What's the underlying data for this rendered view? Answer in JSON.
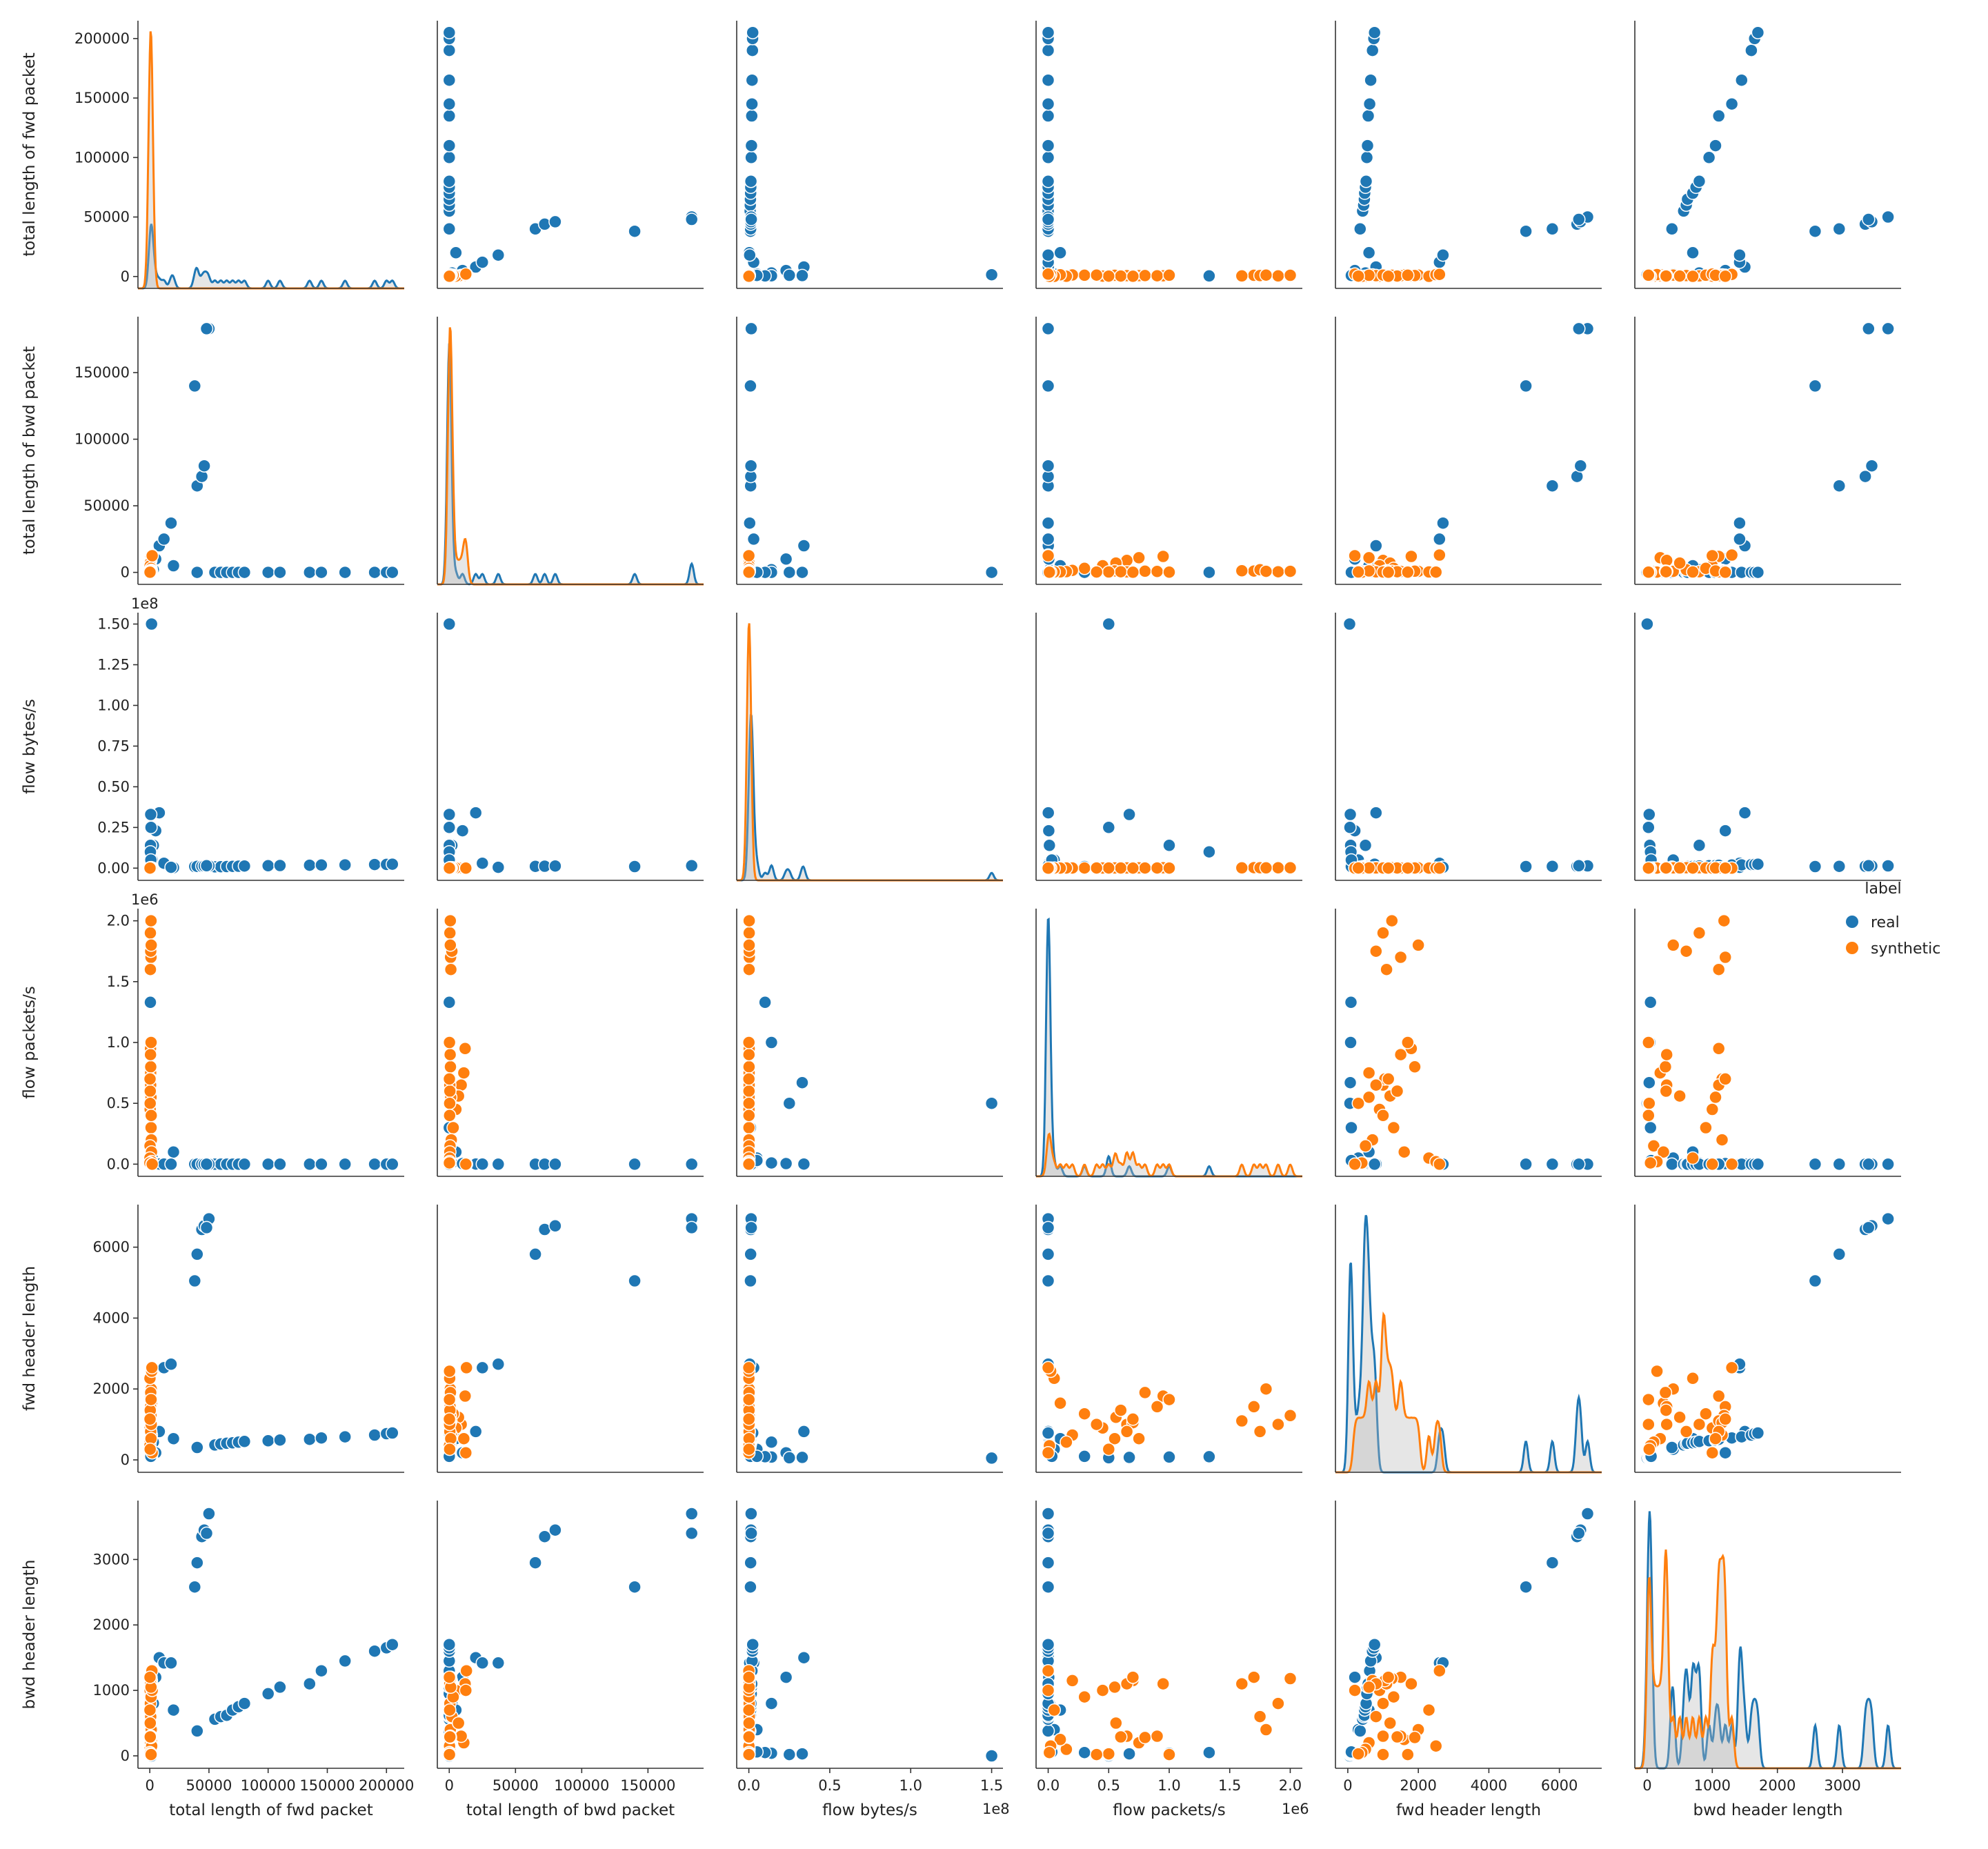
{
  "chart_data": {
    "type": "scatter",
    "variables": [
      "total length of fwd packet",
      "total length of bwd packet",
      "flow bytes/s",
      "flow packets/s",
      "fwd header length",
      "bwd header length"
    ],
    "axes": [
      {
        "name": "total length of fwd packet",
        "range": [
          -10000,
          215000
        ],
        "ticks": [
          0,
          50000,
          100000,
          150000,
          200000
        ],
        "tick_labels": [
          "0",
          "50000",
          "100000",
          "150000",
          "200000"
        ],
        "x_tick_labels": [
          "0",
          "50000",
          "100000",
          "150000",
          "200000"
        ],
        "offset": ""
      },
      {
        "name": "total length of bwd packet",
        "range": [
          -9000,
          192000
        ],
        "ticks": [
          0,
          50000,
          100000,
          150000
        ],
        "tick_labels": [
          "0",
          "50000",
          "100000",
          "150000"
        ],
        "x_tick_labels": [
          "0",
          "50000",
          "100000",
          "150000"
        ],
        "offset": ""
      },
      {
        "name": "flow bytes/s",
        "range": [
          -7500000,
          157000000
        ],
        "ticks": [
          0,
          25000000,
          50000000,
          75000000,
          100000000,
          125000000,
          150000000
        ],
        "tick_labels": [
          "0.00",
          "0.25",
          "0.50",
          "0.75",
          "1.00",
          "1.25",
          "1.50"
        ],
        "x_ticks": [
          0,
          50000000,
          100000000,
          150000000
        ],
        "x_tick_labels": [
          "0.0",
          "0.5",
          "1.0",
          "1.5"
        ],
        "offset": "1e8"
      },
      {
        "name": "flow packets/s",
        "range": [
          -100000,
          2100000
        ],
        "ticks": [
          0,
          500000,
          1000000,
          1500000,
          2000000
        ],
        "tick_labels": [
          "0.0",
          "0.5",
          "1.0",
          "1.5",
          "2.0"
        ],
        "x_tick_labels": [
          "0.0",
          "0.5",
          "1.0",
          "1.5",
          "2.0"
        ],
        "offset": "1e6"
      },
      {
        "name": "fwd header length",
        "range": [
          -350,
          7200
        ],
        "ticks": [
          0,
          2000,
          4000,
          6000
        ],
        "tick_labels": [
          "0",
          "2000",
          "4000",
          "6000"
        ],
        "x_tick_labels": [
          "0",
          "2000",
          "4000",
          "6000"
        ],
        "offset": ""
      },
      {
        "name": "bwd header length",
        "range": [
          -190,
          3900
        ],
        "ticks": [
          0,
          1000,
          2000,
          3000
        ],
        "tick_labels": [
          "0",
          "1000",
          "2000",
          "3000"
        ],
        "x_tick_labels": [
          "0",
          "1000",
          "2000",
          "3000"
        ],
        "offset": ""
      }
    ],
    "legend": {
      "title": "label",
      "position": "right",
      "entries": [
        {
          "name": "real",
          "color": "#1f77b4"
        },
        {
          "name": "synthetic",
          "color": "#ff7f0e"
        }
      ]
    },
    "grid": false,
    "series": [
      {
        "name": "real",
        "color": "#1f77b4",
        "points": [
          [
            1000,
            0,
            1000000,
            300000,
            100,
            50
          ],
          [
            2000,
            500,
            5000000,
            50000,
            300,
            400
          ],
          [
            3000,
            2000,
            14000000,
            10000,
            500,
            800
          ],
          [
            5000,
            10000,
            23000000,
            5000,
            200,
            1200
          ],
          [
            8000,
            20000,
            34000000,
            1000,
            800,
            1500
          ],
          [
            12000,
            25000,
            3000000,
            500,
            2600,
            1420
          ],
          [
            20000,
            5000,
            300000,
            100000,
            600,
            700
          ],
          [
            18000,
            37000,
            500000,
            0,
            2700,
            1420
          ],
          [
            40000,
            0,
            600000,
            0,
            350,
            380
          ],
          [
            55000,
            0,
            800000,
            0,
            420,
            560
          ],
          [
            60000,
            0,
            900000,
            0,
            450,
            600
          ],
          [
            65000,
            0,
            1000000,
            0,
            470,
            620
          ],
          [
            70000,
            0,
            1100000,
            0,
            480,
            700
          ],
          [
            75000,
            0,
            1200000,
            0,
            500,
            750
          ],
          [
            80000,
            0,
            1300000,
            0,
            520,
            800
          ],
          [
            100000,
            0,
            1500000,
            0,
            540,
            950
          ],
          [
            110000,
            0,
            1600000,
            0,
            560,
            1050
          ],
          [
            135000,
            0,
            1800000,
            0,
            580,
            1100
          ],
          [
            145000,
            0,
            1900000,
            0,
            620,
            1300
          ],
          [
            165000,
            0,
            2000000,
            0,
            650,
            1450
          ],
          [
            190000,
            0,
            2200000,
            0,
            700,
            1600
          ],
          [
            200000,
            0,
            2300000,
            0,
            740,
            1650
          ],
          [
            205000,
            0,
            2400000,
            0,
            760,
            1700
          ],
          [
            38000,
            140000,
            1000000,
            0,
            5050,
            2580
          ],
          [
            40000,
            65000,
            1100000,
            0,
            5800,
            2950
          ],
          [
            44000,
            72000,
            1200000,
            0,
            6500,
            3350
          ],
          [
            46000,
            80000,
            1300000,
            0,
            6600,
            3450
          ],
          [
            50000,
            183000,
            1400000,
            0,
            6800,
            3700
          ],
          [
            48000,
            183000,
            1500000,
            0,
            6550,
            3400
          ],
          [
            1500,
            0,
            150000000,
            500000,
            50,
            0
          ],
          [
            1000,
            0,
            25000000,
            500000,
            60,
            20
          ],
          [
            800,
            0,
            33000000,
            670000,
            70,
            30
          ],
          [
            600,
            0,
            14000000,
            1000000,
            80,
            40
          ],
          [
            500,
            0,
            10000000,
            1330000,
            90,
            50
          ],
          [
            900,
            0,
            5000000,
            30000,
            100,
            60
          ]
        ]
      },
      {
        "name": "synthetic",
        "color": "#ff7f0e",
        "points": [
          [
            500,
            500,
            200000,
            1900000,
            1000,
            800
          ],
          [
            1000,
            1000,
            300000,
            1700000,
            1500,
            1200
          ],
          [
            800,
            2000,
            250000,
            1750000,
            800,
            600
          ],
          [
            1200,
            800,
            180000,
            1800000,
            2000,
            400
          ],
          [
            600,
            12000,
            220000,
            950000,
            1800,
            1100
          ],
          [
            700,
            11000,
            160000,
            750000,
            600,
            200
          ],
          [
            900,
            9000,
            140000,
            650000,
            1000,
            300
          ],
          [
            400,
            7000,
            120000,
            560000,
            1200,
            500
          ],
          [
            300,
            5000,
            100000,
            450000,
            900,
            1000
          ],
          [
            1100,
            3000,
            90000,
            300000,
            1300,
            900
          ],
          [
            1300,
            1500,
            80000,
            200000,
            700,
            1150
          ],
          [
            200,
            600,
            70000,
            150000,
            500,
            100
          ],
          [
            1400,
            400,
            60000,
            100000,
            1600,
            250
          ],
          [
            150,
            300,
            50000,
            50000,
            2300,
            700
          ],
          [
            1600,
            200,
            40000,
            20000,
            2500,
            150
          ],
          [
            100,
            100,
            30000,
            10000,
            400,
            50
          ],
          [
            1800,
            13000,
            20000,
            0,
            2600,
            1300
          ],
          [
            2000,
            12500,
            10000,
            0,
            200,
            1000
          ],
          [
            1000,
            800,
            200000,
            2000000,
            1250,
            1180
          ],
          [
            500,
            1200,
            180000,
            1600000,
            1100,
            1100
          ],
          [
            900,
            700,
            170000,
            700000,
            1050,
            1150
          ],
          [
            700,
            400,
            150000,
            650000,
            800,
            1100
          ],
          [
            1000,
            1100,
            130000,
            550000,
            600,
            1050
          ],
          [
            800,
            900,
            110000,
            800000,
            1900,
            280
          ],
          [
            600,
            700,
            100000,
            900000,
            1500,
            300
          ],
          [
            400,
            500,
            90000,
            600000,
            1400,
            290
          ],
          [
            300,
            300,
            80000,
            500000,
            300,
            30
          ],
          [
            1200,
            250,
            70000,
            400000,
            1000,
            20
          ],
          [
            1100,
            150,
            60000,
            1000000,
            1700,
            20
          ],
          [
            200,
            100,
            50000,
            700000,
            1150,
            1200
          ]
        ]
      }
    ]
  }
}
